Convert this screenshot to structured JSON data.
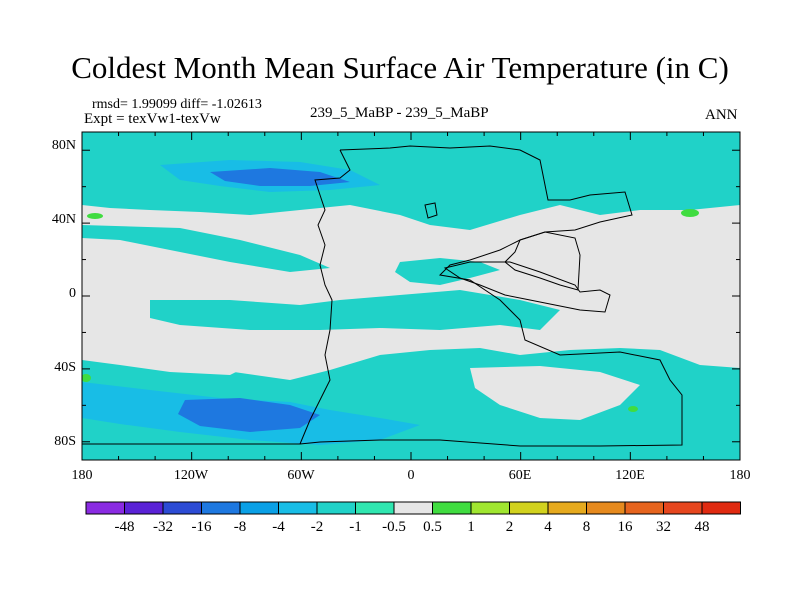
{
  "title": "Coldest Month Mean Surface Air Temperature (in C)",
  "stats": "rmsd= 1.99099 diff= -1.02613",
  "expt": "Expt = texVw1-texVw",
  "comparison": "239_5_MaBP - 239_5_MaBP",
  "period": "ANN",
  "axes": {
    "lat_labels": [
      "80N",
      "40N",
      "0",
      "40S",
      "80S"
    ],
    "lon_labels": [
      "180",
      "120W",
      "60W",
      "0",
      "60E",
      "120E",
      "180"
    ]
  },
  "colorbar": {
    "labels": [
      "-48",
      "-32",
      "-16",
      "-8",
      "-4",
      "-2",
      "-1",
      "-0.5",
      "0.5",
      "1",
      "2",
      "4",
      "8",
      "16",
      "32",
      "48"
    ],
    "colors": [
      "#8a2be2",
      "#5a22d6",
      "#2c4bd4",
      "#1e78e0",
      "#0aa0e6",
      "#18bde6",
      "#20d2c8",
      "#30e6b0",
      "#e6e6e6",
      "#40dc40",
      "#a0e630",
      "#d2d21e",
      "#e6aa1e",
      "#e68a1e",
      "#e6641e",
      "#e6461e",
      "#e02a10"
    ]
  },
  "map_colors": {
    "neutral": "#e6e6e6",
    "cyan": "#20d2c8",
    "light_blue": "#18bde6",
    "blue": "#1e78e0",
    "green": "#40dc40"
  }
}
